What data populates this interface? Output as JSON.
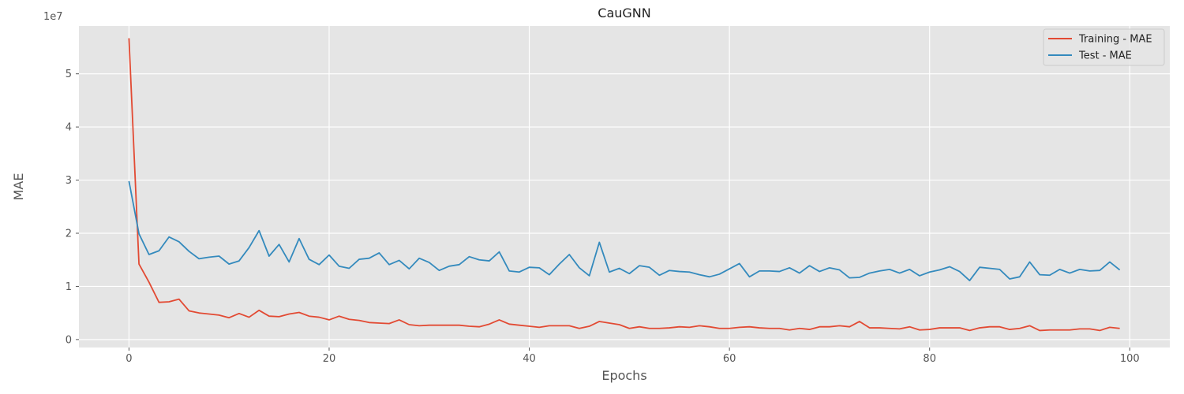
{
  "chart_data": {
    "type": "line",
    "title": "CauGNN",
    "xlabel": "Epochs",
    "ylabel": "MAE",
    "y_offset_label": "1e7",
    "xlim": [
      -5,
      104
    ],
    "ylim": [
      -0.15,
      5.9
    ],
    "x_ticks": [
      0,
      20,
      40,
      60,
      80,
      100
    ],
    "x_tick_labels": [
      "0",
      "20",
      "40",
      "60",
      "80",
      "100"
    ],
    "y_ticks": [
      0,
      1,
      2,
      3,
      4,
      5
    ],
    "y_tick_labels": [
      "0",
      "1",
      "2",
      "3",
      "4",
      "5"
    ],
    "grid": true,
    "legend_position": "top-right",
    "x": [
      0,
      1,
      2,
      3,
      4,
      5,
      6,
      7,
      8,
      9,
      10,
      11,
      12,
      13,
      14,
      15,
      16,
      17,
      18,
      19,
      20,
      21,
      22,
      23,
      24,
      25,
      26,
      27,
      28,
      29,
      30,
      31,
      32,
      33,
      34,
      35,
      36,
      37,
      38,
      39,
      40,
      41,
      42,
      43,
      44,
      45,
      46,
      47,
      48,
      49,
      50,
      51,
      52,
      53,
      54,
      55,
      56,
      57,
      58,
      59,
      60,
      61,
      62,
      63,
      64,
      65,
      66,
      67,
      68,
      69,
      70,
      71,
      72,
      73,
      74,
      75,
      76,
      77,
      78,
      79,
      80,
      81,
      82,
      83,
      84,
      85,
      86,
      87,
      88,
      89,
      90,
      91,
      92,
      93,
      94,
      95,
      96,
      97,
      98,
      99
    ],
    "series": [
      {
        "name": "Training - MAE",
        "color": "#e24a33",
        "values": [
          5.67,
          1.42,
          1.08,
          0.7,
          0.71,
          0.76,
          0.54,
          0.5,
          0.48,
          0.46,
          0.41,
          0.49,
          0.42,
          0.55,
          0.44,
          0.43,
          0.48,
          0.51,
          0.44,
          0.42,
          0.37,
          0.44,
          0.38,
          0.36,
          0.32,
          0.31,
          0.3,
          0.37,
          0.28,
          0.26,
          0.27,
          0.27,
          0.27,
          0.27,
          0.25,
          0.24,
          0.29,
          0.37,
          0.29,
          0.27,
          0.25,
          0.23,
          0.26,
          0.26,
          0.26,
          0.21,
          0.25,
          0.34,
          0.31,
          0.28,
          0.21,
          0.24,
          0.21,
          0.21,
          0.22,
          0.24,
          0.23,
          0.26,
          0.24,
          0.21,
          0.21,
          0.23,
          0.24,
          0.22,
          0.21,
          0.21,
          0.18,
          0.21,
          0.19,
          0.24,
          0.24,
          0.26,
          0.24,
          0.34,
          0.22,
          0.22,
          0.21,
          0.2,
          0.24,
          0.18,
          0.19,
          0.22,
          0.22,
          0.22,
          0.17,
          0.22,
          0.24,
          0.24,
          0.19,
          0.21,
          0.26,
          0.17,
          0.18,
          0.18,
          0.18,
          0.2,
          0.2,
          0.17,
          0.23,
          0.21
        ]
      },
      {
        "name": "Test - MAE",
        "color": "#348abd",
        "values": [
          2.98,
          1.99,
          1.6,
          1.67,
          1.93,
          1.84,
          1.66,
          1.52,
          1.55,
          1.57,
          1.42,
          1.48,
          1.73,
          2.05,
          1.57,
          1.79,
          1.46,
          1.9,
          1.51,
          1.41,
          1.59,
          1.38,
          1.34,
          1.51,
          1.53,
          1.63,
          1.41,
          1.49,
          1.33,
          1.53,
          1.45,
          1.3,
          1.38,
          1.41,
          1.56,
          1.5,
          1.48,
          1.65,
          1.29,
          1.27,
          1.36,
          1.35,
          1.22,
          1.42,
          1.6,
          1.35,
          1.2,
          1.83,
          1.27,
          1.34,
          1.24,
          1.39,
          1.36,
          1.21,
          1.3,
          1.28,
          1.27,
          1.22,
          1.18,
          1.23,
          1.33,
          1.43,
          1.18,
          1.29,
          1.29,
          1.28,
          1.35,
          1.25,
          1.39,
          1.28,
          1.35,
          1.31,
          1.16,
          1.17,
          1.25,
          1.29,
          1.32,
          1.25,
          1.32,
          1.2,
          1.27,
          1.31,
          1.37,
          1.28,
          1.11,
          1.36,
          1.34,
          1.32,
          1.14,
          1.18,
          1.46,
          1.22,
          1.21,
          1.32,
          1.25,
          1.32,
          1.29,
          1.3,
          1.46,
          1.31
        ]
      }
    ]
  }
}
